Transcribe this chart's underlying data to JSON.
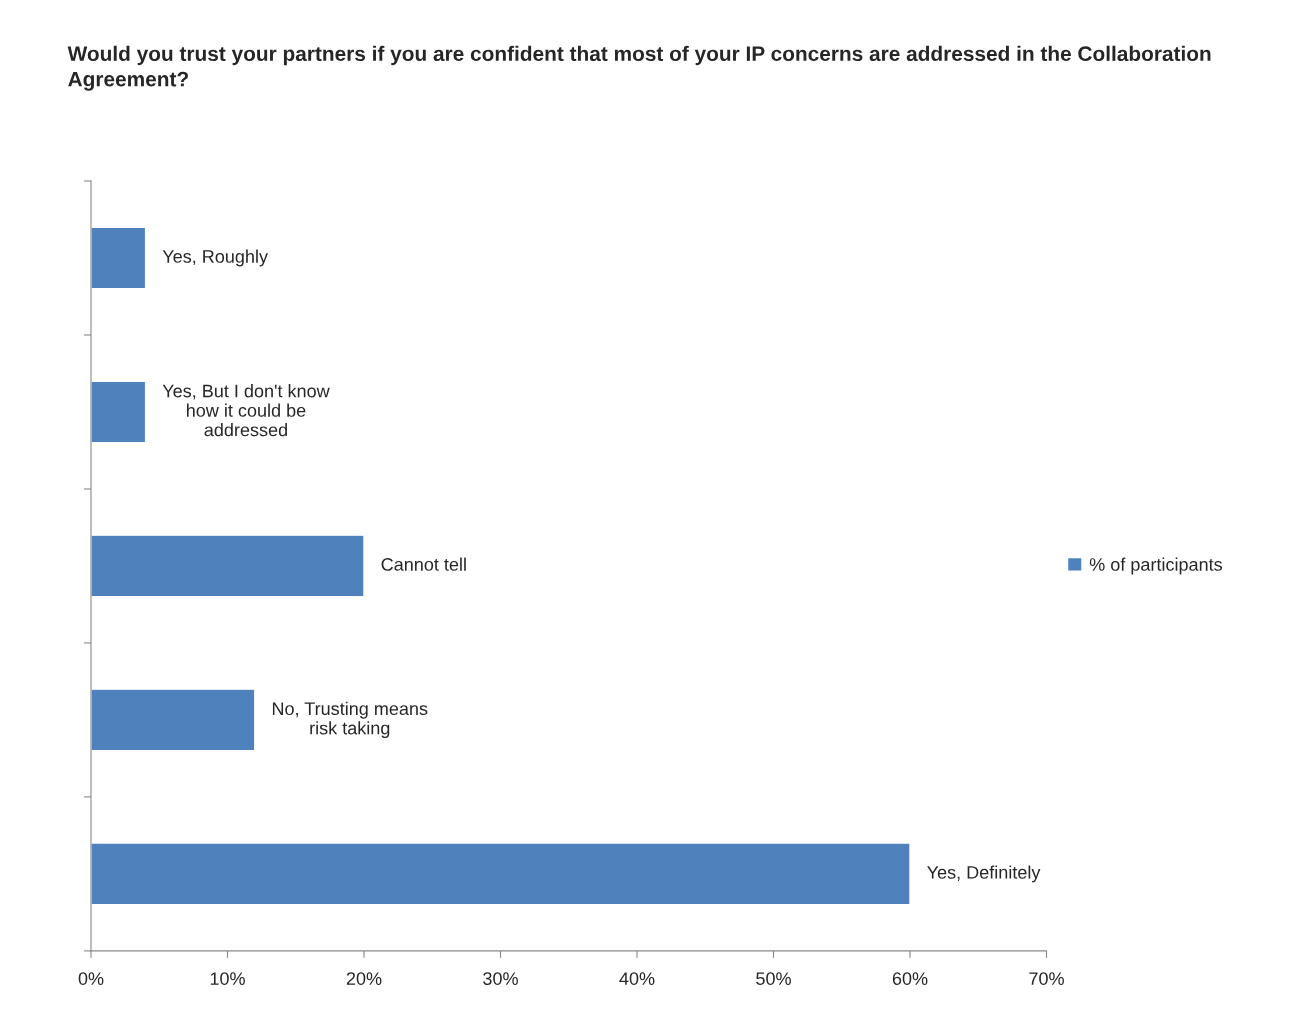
{
  "chart_data": {
    "type": "bar",
    "orientation": "horizontal",
    "title": "Would you trust your partners if you are confident that most of your IP concerns are addressed in the Collaboration Agreement?",
    "categories": [
      "Yes, Roughly",
      "Yes, But I don't know\nhow it could be\naddressed",
      "Cannot tell",
      "No, Trusting means\nrisk taking",
      "Yes, Definitely"
    ],
    "series": [
      {
        "name": "% of participants",
        "color": "#4f81bd",
        "values": [
          4,
          4,
          20,
          12,
          60
        ]
      }
    ],
    "xlim": [
      0,
      70
    ],
    "xticks": [
      {
        "value": 0,
        "label": "0%"
      },
      {
        "value": 10,
        "label": "10%"
      },
      {
        "value": 20,
        "label": "20%"
      },
      {
        "value": 30,
        "label": "30%"
      },
      {
        "value": 40,
        "label": "40%"
      },
      {
        "value": 50,
        "label": "50%"
      },
      {
        "value": 60,
        "label": "60%"
      },
      {
        "value": 70,
        "label": "70%"
      }
    ],
    "tick_labels": "x",
    "grid": false,
    "legend": "right"
  }
}
